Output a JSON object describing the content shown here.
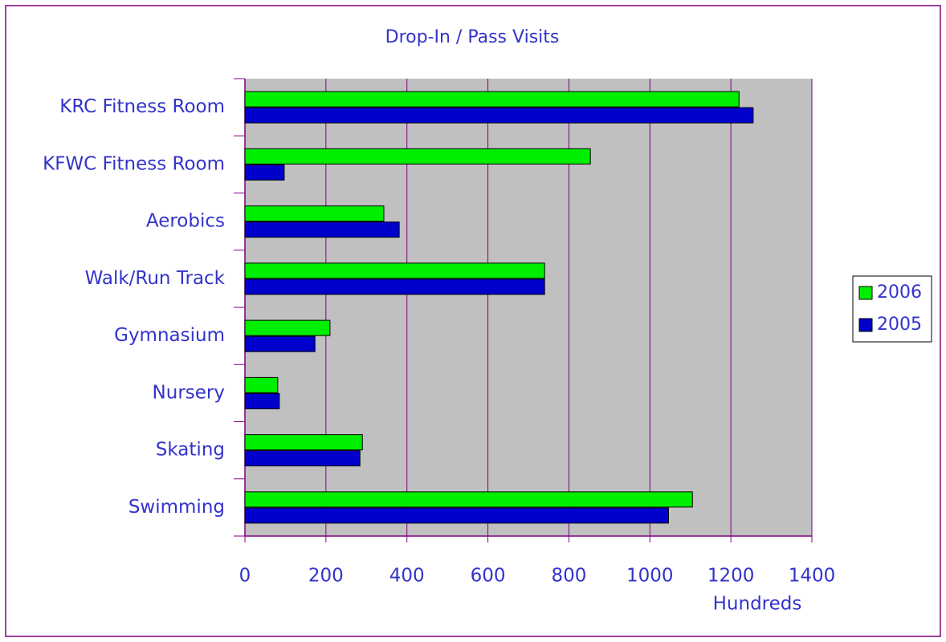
{
  "chart_data": {
    "type": "hbar",
    "title": "Drop-In / Pass Visits",
    "x_label": "Hundreds",
    "categories": [
      "KRC Fitness Room",
      "KFWC Fitness Room",
      "Aerobics",
      "Walk/Run Track",
      "Gymnasium",
      "Nursery",
      "Skating",
      "Swimming"
    ],
    "series": [
      {
        "name": "2006",
        "color": "#00ee00",
        "values": [
          1220,
          853,
          343,
          740,
          210,
          81,
          290,
          1105
        ]
      },
      {
        "name": "2005",
        "color": "#0000cc",
        "values": [
          1255,
          97,
          381,
          740,
          173,
          85,
          284,
          1046
        ]
      }
    ],
    "xlim": [
      0,
      1400
    ],
    "xticks": [
      0,
      200,
      400,
      600,
      800,
      1000,
      1200,
      1400
    ],
    "grid": true,
    "legend": "right"
  }
}
